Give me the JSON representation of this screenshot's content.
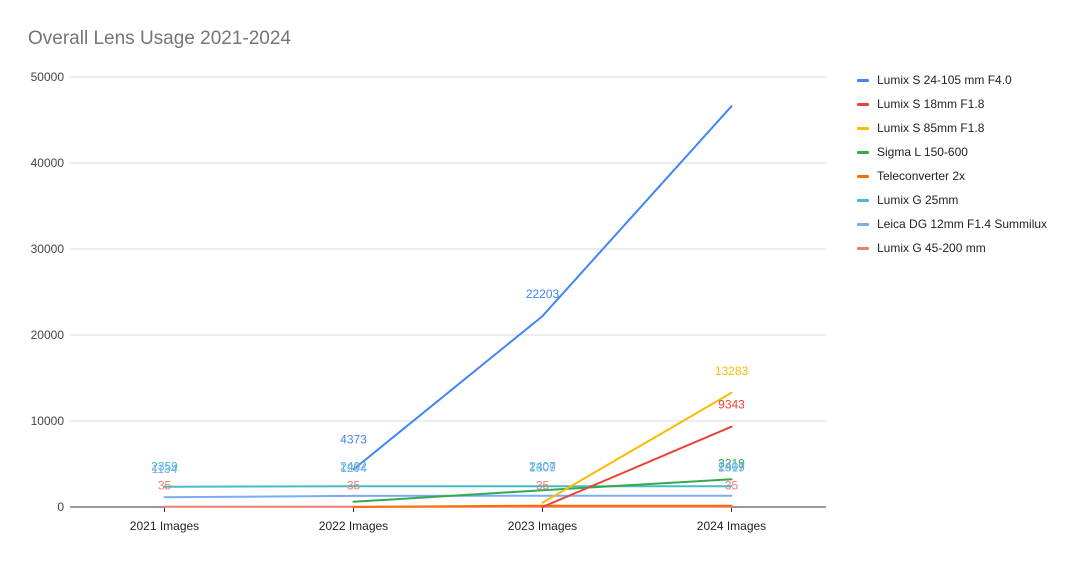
{
  "chart_data": {
    "type": "line",
    "title": "Overall Lens Usage 2021-2024",
    "xlabel": "",
    "ylabel": "",
    "categories": [
      "2021 Images",
      "2022 Images",
      "2023 Images",
      "2024 Images"
    ],
    "ylim": [
      0,
      50000
    ],
    "yticks": [
      "0",
      "10000",
      "20000",
      "30000",
      "40000",
      "50000"
    ],
    "grid": true,
    "legend_position": "right",
    "series": [
      {
        "name": "Lumix S 24-105 mm F4.0",
        "color": "#4285F4",
        "values": [
          null,
          4373,
          22203,
          46600
        ],
        "labels": [
          null,
          "4373",
          "22203",
          null
        ]
      },
      {
        "name": "Lumix S 18mm F1.8",
        "color": "#EA4335",
        "values": [
          null,
          null,
          0,
          9343
        ],
        "labels": [
          null,
          null,
          null,
          "9343"
        ]
      },
      {
        "name": "Lumix S 85mm F1.8",
        "color": "#FBBC04",
        "values": [
          null,
          null,
          500,
          13283
        ],
        "labels": [
          null,
          null,
          null,
          "13283"
        ]
      },
      {
        "name": "Sigma L 150-600",
        "color": "#34A853",
        "values": [
          null,
          600,
          1950,
          3219
        ],
        "labels": [
          null,
          null,
          null,
          "3219"
        ]
      },
      {
        "name": "Teleconverter 2x",
        "color": "#FF6D01",
        "values": [
          null,
          0,
          150,
          150
        ],
        "labels": [
          null,
          null,
          null,
          null
        ]
      },
      {
        "name": "Lumix G 25mm",
        "color": "#46BDC6",
        "values": [
          2359,
          2402,
          2407,
          2407
        ],
        "labels": [
          "2359",
          "2402",
          "2407",
          "2407"
        ]
      },
      {
        "name": "Leica DG 12mm F1.4 Summilux",
        "color": "#7BAAF7",
        "values": [
          1134,
          1294,
          1309,
          1319
        ],
        "labels": [
          "1134",
          "1294",
          "1309",
          "1319"
        ]
      },
      {
        "name": "Lumix G 45-200 mm",
        "color": "#F07B72",
        "values": [
          35,
          35,
          35,
          35
        ],
        "labels": [
          "35",
          "35",
          "35",
          "35"
        ]
      }
    ]
  }
}
